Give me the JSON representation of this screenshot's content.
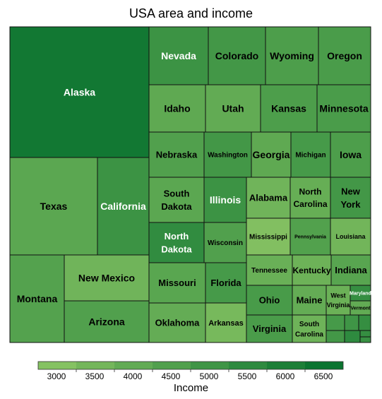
{
  "title": "USA area and income",
  "legend_title": "Income",
  "colors": {
    "scale_low": "#8cc665",
    "scale_high": "#006d2c",
    "border": "#111111",
    "light_text": "#ffffff",
    "dark_text": "#000000"
  },
  "chart_data": {
    "type": "treemap",
    "title": "USA area and income",
    "size_variable": "area",
    "color_variable": "Income",
    "legend": {
      "title": "Income",
      "ticks": [
        3000,
        3500,
        4000,
        4500,
        5000,
        5500,
        6000,
        6500
      ],
      "range": [
        2800,
        6800
      ],
      "placement": "bottom"
    },
    "tiles": [
      {
        "label": "Alaska",
        "income": 6300
      },
      {
        "label": "Texas",
        "income": 4200
      },
      {
        "label": "California",
        "income": 5100
      },
      {
        "label": "Montana",
        "income": 4400
      },
      {
        "label": "New Mexico",
        "income": 3600
      },
      {
        "label": "Arizona",
        "income": 4500
      },
      {
        "label": "Nevada",
        "income": 5100
      },
      {
        "label": "Colorado",
        "income": 4900
      },
      {
        "label": "Wyoming",
        "income": 4600
      },
      {
        "label": "Oregon",
        "income": 4700
      },
      {
        "label": "Idaho",
        "income": 4100
      },
      {
        "label": "Utah",
        "income": 4000
      },
      {
        "label": "Kansas",
        "income": 4600
      },
      {
        "label": "Minnesota",
        "income": 4700
      },
      {
        "label": "Nebraska",
        "income": 4500
      },
      {
        "label": "Washington",
        "income": 4900
      },
      {
        "label": "Georgia",
        "income": 4100
      },
      {
        "label": "Michigan",
        "income": 4800
      },
      {
        "label": "Iowa",
        "income": 4600
      },
      {
        "label": "South Dakota",
        "income": 4200
      },
      {
        "label": "Illinois",
        "income": 5100
      },
      {
        "label": "Alabama",
        "income": 3600
      },
      {
        "label": "North Carolina",
        "income": 3900
      },
      {
        "label": "New York",
        "income": 4900
      },
      {
        "label": "North Dakota",
        "income": 5400
      },
      {
        "label": "Wisconsin",
        "income": 4500
      },
      {
        "label": "Mississippi",
        "income": 3100
      },
      {
        "label": "Pennsylvania",
        "income": 4450
      },
      {
        "label": "Louisiana",
        "income": 3550
      },
      {
        "label": "Missouri",
        "income": 4250
      },
      {
        "label": "Florida",
        "income": 4800
      },
      {
        "label": "Tennessee",
        "income": 3800
      },
      {
        "label": "Kentucky",
        "income": 3700
      },
      {
        "label": "Indiana",
        "income": 4300
      },
      {
        "label": "Oklahoma",
        "income": 3950
      },
      {
        "label": "Arkansas",
        "income": 3400
      },
      {
        "label": "Ohio",
        "income": 4750
      },
      {
        "label": "Maine",
        "income": 3950
      },
      {
        "label": "West Virginia",
        "income": 3750
      },
      {
        "label": "Maryland",
        "income": 5300
      },
      {
        "label": "Vermont",
        "income": 4000
      },
      {
        "label": "Virginia",
        "income": 4700
      },
      {
        "label": "South Carolina",
        "income": 3650
      },
      {
        "label": "",
        "income": 4800
      },
      {
        "label": "",
        "income": 5000
      },
      {
        "label": "",
        "income": 5300
      },
      {
        "label": "",
        "income": 4900
      },
      {
        "label": "",
        "income": 5500
      },
      {
        "label": "",
        "income": 5300
      },
      {
        "label": "",
        "income": 5200
      }
    ]
  }
}
